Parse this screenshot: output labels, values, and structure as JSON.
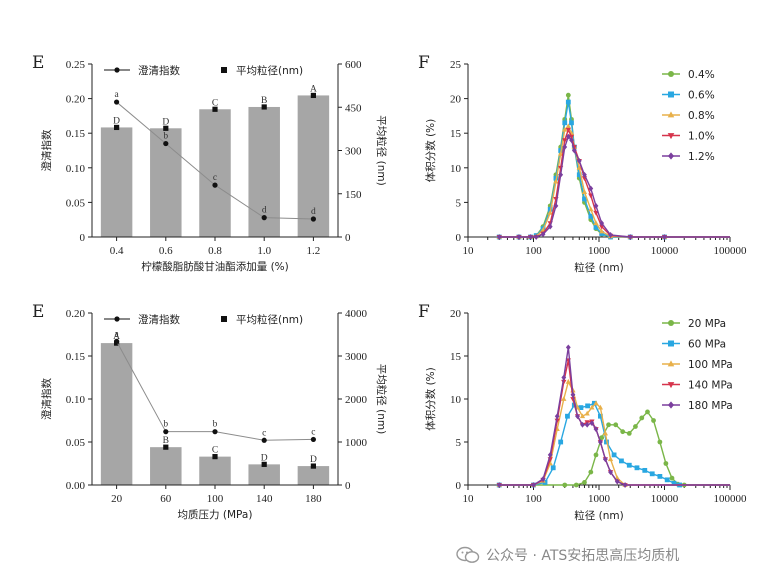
{
  "chart_data": [
    {
      "type": "bar+line",
      "panel": "E",
      "title": "",
      "xlabel": "柠檬酸脂肪酸甘油酯添加量 (%)",
      "ylabel": "澄清指数",
      "y2label": "平均粒径 (nm)",
      "categories": [
        "0.4",
        "0.6",
        "0.8",
        "1.0",
        "1.2"
      ],
      "ylim": [
        0,
        0.25
      ],
      "yticks": [
        "0",
        "0.05",
        "0.10",
        "0.15",
        "0.20",
        "0.25"
      ],
      "y2lim": [
        0,
        600
      ],
      "y2ticks": [
        "0",
        "150",
        "300",
        "450",
        "600"
      ],
      "legend": [
        {
          "label": "澄清指数",
          "marker": "line-dot"
        },
        {
          "label": "平均粒径(nm)",
          "marker": "square"
        }
      ],
      "series": [
        {
          "name": "澄清指数",
          "kind": "line",
          "values": [
            0.195,
            0.135,
            0.075,
            0.028,
            0.026
          ],
          "labels": [
            "a",
            "b",
            "c",
            "d",
            "d"
          ]
        },
        {
          "name": "平均粒径(nm)",
          "kind": "bar",
          "values": [
            380,
            377,
            443,
            451,
            491
          ],
          "labels": [
            "D",
            "D",
            "C",
            "B",
            "A"
          ]
        }
      ]
    },
    {
      "type": "line",
      "panel": "F",
      "title": "",
      "xlabel": "粒径 (nm)",
      "ylabel": "体积分数 (%)",
      "xscale": "log",
      "xlim": [
        10,
        100000
      ],
      "xticks": [
        "10",
        "100",
        "1000",
        "10000",
        "100000"
      ],
      "ylim": [
        0,
        25
      ],
      "yticks": [
        "0",
        "5",
        "10",
        "15",
        "20",
        "25"
      ],
      "legend_position": "top-right",
      "series": [
        {
          "name": "0.4%",
          "color": "#7ab648",
          "marker": "circle",
          "x": [
            30,
            60,
            90,
            110,
            140,
            180,
            220,
            260,
            300,
            340,
            380,
            420,
            500,
            600,
            750,
            900,
            1100,
            1500,
            3000,
            10000,
            100000
          ],
          "y": [
            0,
            0,
            0,
            0.2,
            1.5,
            4.5,
            9,
            13,
            17,
            20.5,
            17,
            13,
            8.5,
            5,
            2.5,
            1.2,
            0.4,
            0,
            0,
            0,
            0
          ]
        },
        {
          "name": "0.6%",
          "color": "#29a7e1",
          "marker": "square",
          "x": [
            30,
            60,
            90,
            110,
            140,
            180,
            220,
            260,
            300,
            340,
            380,
            420,
            500,
            600,
            750,
            900,
            1100,
            1500,
            3000,
            10000,
            100000
          ],
          "y": [
            0,
            0,
            0,
            0.2,
            1.2,
            4,
            8.5,
            12.5,
            16.5,
            19.5,
            16.5,
            13,
            9,
            5.5,
            3,
            1.4,
            0.5,
            0,
            0,
            0,
            0
          ]
        },
        {
          "name": "0.8%",
          "color": "#e8b04a",
          "marker": "triangle",
          "x": [
            30,
            60,
            90,
            110,
            140,
            180,
            220,
            260,
            300,
            340,
            380,
            420,
            500,
            600,
            750,
            900,
            1100,
            1500,
            3000,
            10000,
            100000
          ],
          "y": [
            0,
            0,
            0,
            0.1,
            1,
            3.5,
            8,
            12,
            15.5,
            16,
            15,
            13,
            10,
            6.5,
            4,
            2,
            0.8,
            0.1,
            0,
            0,
            0
          ]
        },
        {
          "name": "1.0%",
          "color": "#d6344c",
          "marker": "triangle-down",
          "x": [
            30,
            60,
            90,
            110,
            140,
            180,
            220,
            260,
            300,
            340,
            380,
            420,
            500,
            600,
            750,
            900,
            1100,
            1500,
            3000,
            10000,
            100000
          ],
          "y": [
            0,
            0,
            0,
            0,
            0.5,
            2,
            5.5,
            10,
            14,
            15.5,
            14.5,
            13,
            11,
            8.5,
            6,
            3.5,
            1.5,
            0.2,
            0,
            0,
            0
          ]
        },
        {
          "name": "1.2%",
          "color": "#7b3f9e",
          "marker": "diamond",
          "x": [
            30,
            60,
            90,
            110,
            140,
            180,
            220,
            260,
            300,
            340,
            380,
            420,
            500,
            600,
            750,
            900,
            1100,
            1500,
            3000,
            10000,
            100000
          ],
          "y": [
            0,
            0,
            0,
            0,
            0.4,
            1.5,
            4.5,
            9,
            13,
            14.5,
            14,
            12.5,
            11,
            9,
            7,
            4.5,
            2,
            0.3,
            0,
            0,
            0
          ]
        }
      ]
    },
    {
      "type": "bar+line",
      "panel": "E",
      "title": "",
      "xlabel": "均质压力 (MPa)",
      "ylabel": "澄清指数",
      "y2label": "平均粒径 (nm)",
      "categories": [
        "20",
        "60",
        "100",
        "140",
        "180"
      ],
      "ylim": [
        0,
        0.2
      ],
      "yticks": [
        "0.00",
        "0.05",
        "0.10",
        "0.15",
        "0.20"
      ],
      "y2lim": [
        0,
        4000
      ],
      "y2ticks": [
        "0",
        "1000",
        "2000",
        "3000",
        "4000"
      ],
      "legend": [
        {
          "label": "澄清指数",
          "marker": "line-dot"
        },
        {
          "label": "平均粒径(nm)",
          "marker": "square"
        }
      ],
      "series": [
        {
          "name": "澄清指数",
          "kind": "line",
          "values": [
            0.167,
            0.062,
            0.062,
            0.052,
            0.053
          ],
          "labels": [
            "a",
            "b",
            "b",
            "c",
            "c"
          ]
        },
        {
          "name": "平均粒径(nm)",
          "kind": "bar",
          "values": [
            3300,
            880,
            660,
            480,
            440
          ],
          "labels": [
            "A",
            "B",
            "C",
            "D",
            "D"
          ]
        }
      ]
    },
    {
      "type": "line",
      "panel": "F",
      "title": "",
      "xlabel": "粒径 (nm)",
      "ylabel": "体积分数 (%)",
      "xscale": "log",
      "xlim": [
        10,
        100000
      ],
      "xticks": [
        "10",
        "100",
        "1000",
        "10000",
        "100000"
      ],
      "ylim": [
        0,
        20
      ],
      "yticks": [
        "0",
        "5",
        "10",
        "15",
        "20"
      ],
      "legend_position": "top-right",
      "series": [
        {
          "name": "20 MPa",
          "color": "#7ab648",
          "marker": "circle",
          "x": [
            30,
            100,
            300,
            450,
            600,
            750,
            900,
            1100,
            1400,
            1800,
            2300,
            2900,
            3600,
            4500,
            5500,
            6800,
            8500,
            10500,
            13000,
            16000,
            20000,
            100000
          ],
          "y": [
            0,
            0,
            0,
            0,
            0.3,
            1.5,
            3.5,
            5.5,
            7,
            7,
            6.2,
            6,
            6.8,
            7.8,
            8.5,
            7.5,
            5,
            2.5,
            0.8,
            0.1,
            0,
            0
          ]
        },
        {
          "name": "60 MPa",
          "color": "#29a7e1",
          "marker": "square",
          "x": [
            30,
            100,
            150,
            200,
            260,
            330,
            420,
            530,
            670,
            850,
            1050,
            1300,
            1700,
            2200,
            2900,
            3800,
            5000,
            6500,
            8500,
            11000,
            14000,
            17000,
            100000
          ],
          "y": [
            0,
            0,
            0.3,
            2,
            5,
            8,
            9.3,
            9,
            9.2,
            9.5,
            8,
            5,
            3.5,
            2.8,
            2.3,
            2,
            1.7,
            1.3,
            1,
            0.6,
            0.2,
            0,
            0
          ]
        },
        {
          "name": "100 MPa",
          "color": "#e8b04a",
          "marker": "triangle",
          "x": [
            30,
            100,
            140,
            180,
            230,
            290,
            340,
            400,
            470,
            560,
            660,
            780,
            900,
            1050,
            1250,
            1500,
            1900,
            2500,
            100000
          ],
          "y": [
            0,
            0,
            0.5,
            2.5,
            6.5,
            10,
            12,
            11,
            9,
            8,
            8.3,
            9,
            9.5,
            9,
            6,
            3,
            0.8,
            0,
            0
          ]
        },
        {
          "name": "140 MPa",
          "color": "#d6344c",
          "marker": "triangle-down",
          "x": [
            30,
            100,
            140,
            180,
            230,
            290,
            340,
            400,
            470,
            560,
            660,
            780,
            900,
            1050,
            1250,
            1500,
            1900,
            2500,
            100000
          ],
          "y": [
            0,
            0,
            0.6,
            3,
            7.5,
            12,
            14.5,
            10,
            8,
            7,
            7.3,
            7.4,
            6.5,
            5,
            3,
            1.5,
            0.4,
            0,
            0
          ]
        },
        {
          "name": "180 MPa",
          "color": "#7b3f9e",
          "marker": "diamond",
          "x": [
            30,
            100,
            140,
            180,
            230,
            290,
            340,
            400,
            470,
            560,
            660,
            780,
            900,
            1050,
            1250,
            1500,
            1900,
            2500,
            100000
          ],
          "y": [
            0,
            0,
            0.7,
            3.5,
            8,
            12.5,
            16,
            10.5,
            8,
            7,
            7,
            7.2,
            6.5,
            5,
            3,
            1.5,
            0.4,
            0,
            0
          ]
        }
      ]
    }
  ],
  "watermark": {
    "text": "公众号 · ATS安拓思高压均质机",
    "icon": "wechat-icon"
  }
}
